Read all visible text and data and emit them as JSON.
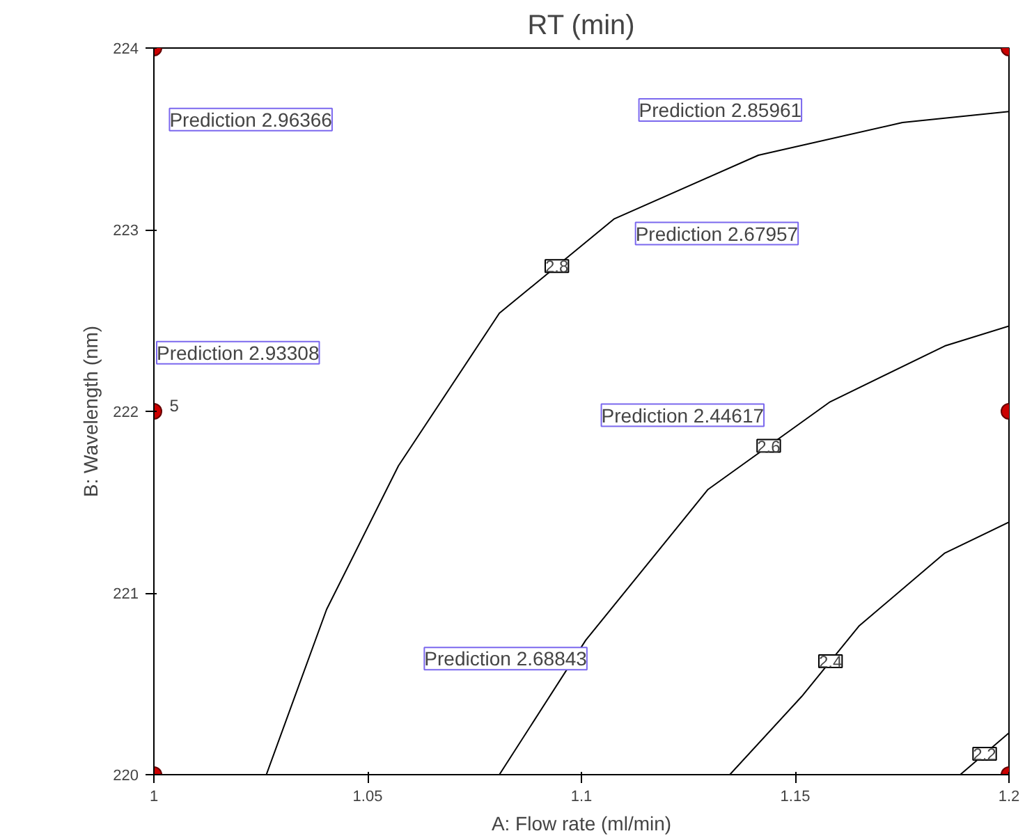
{
  "chart_data": {
    "type": "line",
    "title": "RT (min)",
    "xlabel": "A: Flow rate (ml/min)",
    "ylabel": "B: Wavelength (nm)",
    "xlim": [
      1,
      1.2
    ],
    "ylim": [
      220,
      224
    ],
    "xticks": [
      1,
      1.05,
      1.1,
      1.15,
      1.2
    ],
    "yticks": [
      220,
      221,
      222,
      223,
      224
    ],
    "grid": false,
    "line_style": "solid",
    "series": [
      {
        "name": "2.8",
        "color": "#000000",
        "x": [
          1.0263,
          1.0404,
          1.0572,
          1.0808,
          1.1077,
          1.1414,
          1.1751,
          1.2
        ],
        "values": [
          220,
          220.91,
          221.7,
          222.54,
          223.06,
          223.41,
          223.59,
          223.65
        ]
      },
      {
        "name": "2.6",
        "color": "#000000",
        "x": [
          1.0808,
          1.101,
          1.1296,
          1.158,
          1.185,
          1.2
        ],
        "values": [
          220,
          220.74,
          221.57,
          222.05,
          222.36,
          222.47
        ]
      },
      {
        "name": "2.4",
        "color": "#000000",
        "x": [
          1.1347,
          1.1515,
          1.165,
          1.185,
          1.2
        ],
        "values": [
          220,
          220.43,
          220.82,
          221.22,
          221.39
        ]
      },
      {
        "name": "2.2",
        "color": "#000000",
        "x": [
          1.1886,
          1.2
        ],
        "values": [
          220,
          220.23
        ]
      },
      {
        "type": "scatter",
        "color": "#cc0000",
        "marker": "circle",
        "x": [
          1,
          1,
          1,
          1.2,
          1.2,
          1.2
        ],
        "values": [
          220,
          222,
          224,
          220,
          222,
          224
        ]
      }
    ],
    "annotations": [
      "Prediction 2.96366",
      "Prediction 2.93308",
      "Prediction 2.85961",
      "Prediction 2.67957",
      "Prediction 2.44617",
      "Prediction 2.68843",
      "5"
    ]
  }
}
